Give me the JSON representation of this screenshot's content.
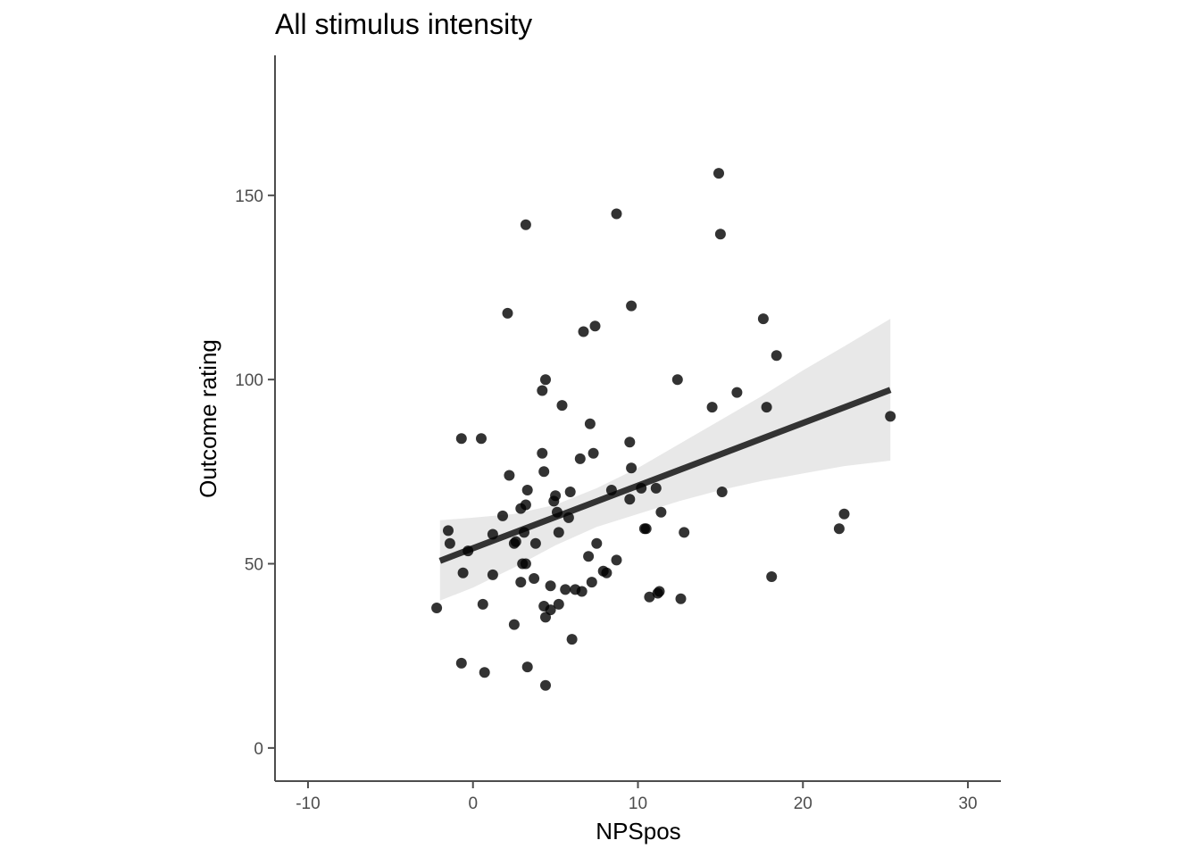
{
  "chart_data": {
    "type": "scatter",
    "title": "All stimulus intensity",
    "xlabel": "NPSpos",
    "ylabel": "Outcome rating",
    "xlim": [
      -12,
      32
    ],
    "ylim": [
      -9,
      188
    ],
    "x_ticks": [
      -10,
      0,
      10,
      20,
      30
    ],
    "x_tick_labels": [
      "-10",
      "0",
      "10",
      "20",
      "30"
    ],
    "y_ticks": [
      0,
      50,
      100,
      150
    ],
    "y_tick_labels": [
      "0",
      "50",
      "100",
      "150"
    ],
    "grid": false,
    "legend": "none",
    "point_color": "#000000",
    "point_opacity": 0.8,
    "fit_line_color": "#333333",
    "ci_band_color": "#e8e8e8",
    "fit_line": {
      "x": [
        -2.0,
        25.3
      ],
      "y": [
        50.8,
        97.2
      ]
    },
    "ci_band": {
      "x": [
        -2.0,
        0.0,
        2.5,
        5.0,
        7.5,
        10.0,
        12.5,
        15.0,
        17.5,
        20.0,
        22.5,
        25.3
      ],
      "upper": [
        61.8,
        62.5,
        63.5,
        66.0,
        70.5,
        76.0,
        82.5,
        89.0,
        95.5,
        102.5,
        109.0,
        116.5
      ],
      "lower": [
        40.0,
        43.5,
        49.0,
        55.0,
        60.0,
        63.5,
        67.0,
        70.0,
        72.5,
        74.5,
        76.5,
        78.0
      ]
    },
    "points": [
      {
        "x": 14.9,
        "y": 156
      },
      {
        "x": 3.2,
        "y": 142
      },
      {
        "x": 8.7,
        "y": 145
      },
      {
        "x": 15.0,
        "y": 139.5
      },
      {
        "x": 2.1,
        "y": 118
      },
      {
        "x": 9.6,
        "y": 120
      },
      {
        "x": 6.7,
        "y": 113
      },
      {
        "x": 7.4,
        "y": 114.5
      },
      {
        "x": 17.6,
        "y": 116.5
      },
      {
        "x": 18.4,
        "y": 106.5
      },
      {
        "x": 4.4,
        "y": 100
      },
      {
        "x": 12.4,
        "y": 100
      },
      {
        "x": 4.2,
        "y": 97
      },
      {
        "x": 16.0,
        "y": 96.5
      },
      {
        "x": 5.4,
        "y": 93
      },
      {
        "x": 14.5,
        "y": 92.5
      },
      {
        "x": 17.8,
        "y": 92.5
      },
      {
        "x": 25.3,
        "y": 90
      },
      {
        "x": 7.1,
        "y": 88
      },
      {
        "x": -0.7,
        "y": 84
      },
      {
        "x": 0.5,
        "y": 84
      },
      {
        "x": 9.5,
        "y": 83
      },
      {
        "x": 4.2,
        "y": 80
      },
      {
        "x": 7.3,
        "y": 80
      },
      {
        "x": 6.5,
        "y": 78.5
      },
      {
        "x": 9.6,
        "y": 76
      },
      {
        "x": 4.3,
        "y": 75
      },
      {
        "x": 2.2,
        "y": 74
      },
      {
        "x": 3.3,
        "y": 70
      },
      {
        "x": 8.4,
        "y": 70
      },
      {
        "x": 10.2,
        "y": 70.5
      },
      {
        "x": 11.1,
        "y": 70.5
      },
      {
        "x": 5.9,
        "y": 69.5
      },
      {
        "x": 15.1,
        "y": 69.5
      },
      {
        "x": 5.0,
        "y": 68.5
      },
      {
        "x": 9.5,
        "y": 67.5
      },
      {
        "x": 4.9,
        "y": 67
      },
      {
        "x": 3.2,
        "y": 66
      },
      {
        "x": 2.9,
        "y": 65
      },
      {
        "x": 5.1,
        "y": 64
      },
      {
        "x": 11.4,
        "y": 64
      },
      {
        "x": 22.5,
        "y": 63.5
      },
      {
        "x": 1.8,
        "y": 63
      },
      {
        "x": 5.8,
        "y": 62.5
      },
      {
        "x": 10.4,
        "y": 59.5
      },
      {
        "x": 10.5,
        "y": 59.5
      },
      {
        "x": 22.2,
        "y": 59.5
      },
      {
        "x": -1.5,
        "y": 59
      },
      {
        "x": 5.2,
        "y": 58.5
      },
      {
        "x": 12.8,
        "y": 58.5
      },
      {
        "x": 3.1,
        "y": 58.5
      },
      {
        "x": 1.2,
        "y": 58
      },
      {
        "x": 2.6,
        "y": 56
      },
      {
        "x": 3.8,
        "y": 55.5
      },
      {
        "x": 7.5,
        "y": 55.5
      },
      {
        "x": 2.5,
        "y": 55.5
      },
      {
        "x": -1.4,
        "y": 55.5
      },
      {
        "x": -0.3,
        "y": 53.5
      },
      {
        "x": 7.0,
        "y": 52
      },
      {
        "x": 8.7,
        "y": 51
      },
      {
        "x": 3.0,
        "y": 50
      },
      {
        "x": 3.2,
        "y": 50
      },
      {
        "x": 7.9,
        "y": 48
      },
      {
        "x": 8.1,
        "y": 47.5
      },
      {
        "x": -0.6,
        "y": 47.5
      },
      {
        "x": 1.2,
        "y": 47
      },
      {
        "x": 18.1,
        "y": 46.5
      },
      {
        "x": 3.7,
        "y": 46
      },
      {
        "x": 7.2,
        "y": 45
      },
      {
        "x": 2.9,
        "y": 45
      },
      {
        "x": 4.7,
        "y": 44
      },
      {
        "x": 5.6,
        "y": 43
      },
      {
        "x": 6.2,
        "y": 43
      },
      {
        "x": 6.6,
        "y": 42.5
      },
      {
        "x": 11.3,
        "y": 42.5
      },
      {
        "x": 11.2,
        "y": 42
      },
      {
        "x": 10.7,
        "y": 41
      },
      {
        "x": 12.6,
        "y": 40.5
      },
      {
        "x": 5.2,
        "y": 39
      },
      {
        "x": 0.6,
        "y": 39
      },
      {
        "x": 4.3,
        "y": 38.5
      },
      {
        "x": -2.2,
        "y": 38
      },
      {
        "x": 4.7,
        "y": 37.5
      },
      {
        "x": 4.4,
        "y": 35.5
      },
      {
        "x": 2.5,
        "y": 33.5
      },
      {
        "x": 6.0,
        "y": 29.5
      },
      {
        "x": -0.7,
        "y": 23
      },
      {
        "x": 3.3,
        "y": 22
      },
      {
        "x": 0.7,
        "y": 20.5
      },
      {
        "x": 4.4,
        "y": 17
      }
    ]
  }
}
